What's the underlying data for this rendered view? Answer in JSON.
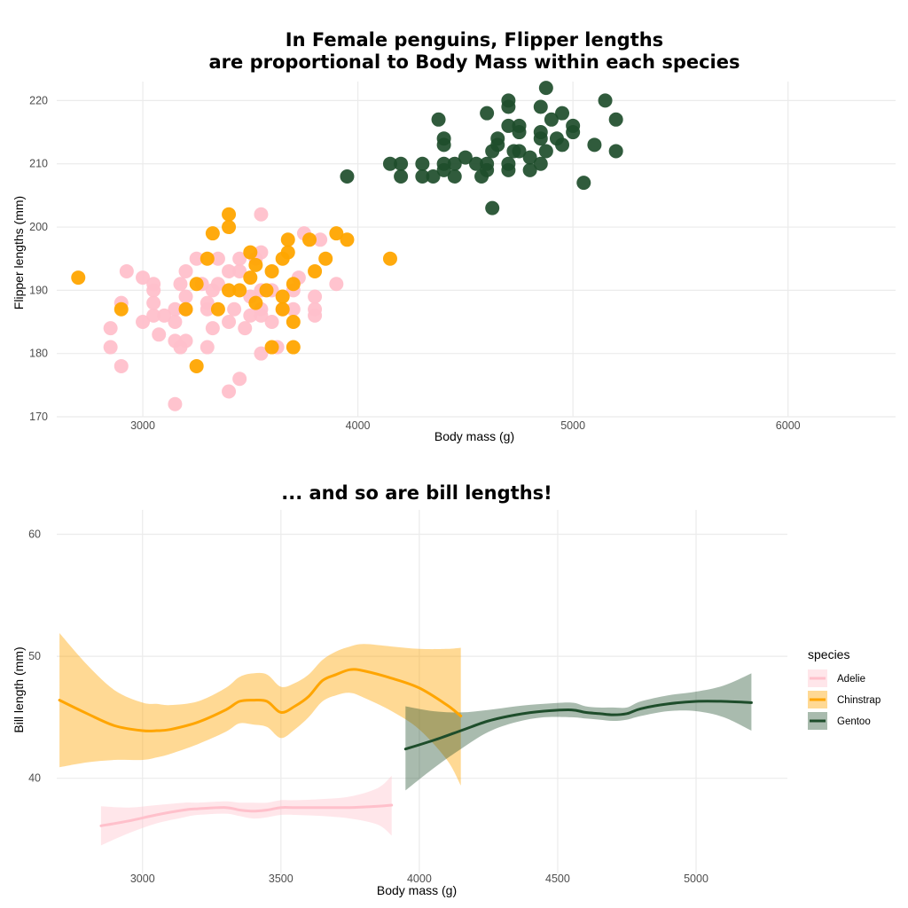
{
  "colors": {
    "Adelie": "#FFC0CB",
    "Chinstrap": "#FFA500",
    "Gentoo": "#1E4D2B"
  },
  "chart_data": [
    {
      "type": "scatter",
      "title": "In Female penguins, Flipper lengths are proportional to Body Mass within each species",
      "title_lines": [
        "In Female penguins, Flipper lengths",
        "are proportional to Body Mass within each species"
      ],
      "xlabel": "Body mass (g)",
      "ylabel": "Flipper lengths (mm)",
      "xlim": [
        2600,
        6500
      ],
      "ylim": [
        170,
        223
      ],
      "x_ticks": [
        3000,
        4000,
        5000,
        6000
      ],
      "y_ticks": [
        170,
        180,
        190,
        200,
        210,
        220
      ],
      "grid": true,
      "series": [
        {
          "name": "Adelie",
          "points": [
            [
              2850,
              181
            ],
            [
              2850,
              184
            ],
            [
              2900,
              178
            ],
            [
              2900,
              188
            ],
            [
              2925,
              193
            ],
            [
              3000,
              185
            ],
            [
              3000,
              192
            ],
            [
              3050,
              186
            ],
            [
              3050,
              188
            ],
            [
              3050,
              190
            ],
            [
              3050,
              191
            ],
            [
              3075,
              183
            ],
            [
              3100,
              186
            ],
            [
              3150,
              172
            ],
            [
              3150,
              182
            ],
            [
              3150,
              185
            ],
            [
              3150,
              187
            ],
            [
              3175,
              181
            ],
            [
              3175,
              191
            ],
            [
              3200,
              182
            ],
            [
              3200,
              187
            ],
            [
              3200,
              189
            ],
            [
              3200,
              193
            ],
            [
              3250,
              195
            ],
            [
              3275,
              191
            ],
            [
              3300,
              181
            ],
            [
              3300,
              187
            ],
            [
              3300,
              188
            ],
            [
              3325,
              184
            ],
            [
              3325,
              190
            ],
            [
              3350,
              191
            ],
            [
              3350,
              195
            ],
            [
              3400,
              174
            ],
            [
              3400,
              185
            ],
            [
              3400,
              193
            ],
            [
              3425,
              187
            ],
            [
              3450,
              176
            ],
            [
              3450,
              193
            ],
            [
              3450,
              195
            ],
            [
              3475,
              184
            ],
            [
              3500,
              186
            ],
            [
              3500,
              189
            ],
            [
              3525,
              195
            ],
            [
              3550,
              180
            ],
            [
              3550,
              186
            ],
            [
              3550,
              187
            ],
            [
              3550,
              190
            ],
            [
              3550,
              196
            ],
            [
              3550,
              202
            ],
            [
              3600,
              185
            ],
            [
              3600,
              190
            ],
            [
              3625,
              181
            ],
            [
              3650,
              187
            ],
            [
              3700,
              187
            ],
            [
              3700,
              190
            ],
            [
              3725,
              192
            ],
            [
              3750,
              199
            ],
            [
              3800,
              186
            ],
            [
              3800,
              187
            ],
            [
              3800,
              189
            ],
            [
              3825,
              198
            ],
            [
              3900,
              191
            ]
          ]
        },
        {
          "name": "Chinstrap",
          "points": [
            [
              2700,
              192
            ],
            [
              2900,
              187
            ],
            [
              3200,
              187
            ],
            [
              3250,
              178
            ],
            [
              3250,
              191
            ],
            [
              3300,
              195
            ],
            [
              3325,
              199
            ],
            [
              3350,
              187
            ],
            [
              3400,
              190
            ],
            [
              3400,
              200
            ],
            [
              3400,
              202
            ],
            [
              3450,
              190
            ],
            [
              3500,
              192
            ],
            [
              3500,
              196
            ],
            [
              3525,
              188
            ],
            [
              3525,
              194
            ],
            [
              3575,
              190
            ],
            [
              3600,
              181
            ],
            [
              3600,
              193
            ],
            [
              3650,
              187
            ],
            [
              3650,
              189
            ],
            [
              3650,
              195
            ],
            [
              3675,
              196
            ],
            [
              3675,
              198
            ],
            [
              3700,
              181
            ],
            [
              3700,
              185
            ],
            [
              3700,
              191
            ],
            [
              3775,
              198
            ],
            [
              3800,
              193
            ],
            [
              3850,
              195
            ],
            [
              3900,
              199
            ],
            [
              3950,
              198
            ],
            [
              4150,
              195
            ]
          ]
        },
        {
          "name": "Gentoo",
          "points": [
            [
              3950,
              208
            ],
            [
              4150,
              210
            ],
            [
              4200,
              208
            ],
            [
              4200,
              210
            ],
            [
              4300,
              208
            ],
            [
              4300,
              210
            ],
            [
              4350,
              208
            ],
            [
              4375,
              217
            ],
            [
              4400,
              209
            ],
            [
              4400,
              210
            ],
            [
              4400,
              213
            ],
            [
              4400,
              214
            ],
            [
              4450,
              208
            ],
            [
              4450,
              210
            ],
            [
              4500,
              211
            ],
            [
              4550,
              210
            ],
            [
              4575,
              208
            ],
            [
              4600,
              209
            ],
            [
              4600,
              210
            ],
            [
              4600,
              218
            ],
            [
              4625,
              203
            ],
            [
              4625,
              212
            ],
            [
              4650,
              213
            ],
            [
              4650,
              214
            ],
            [
              4700,
              209
            ],
            [
              4700,
              210
            ],
            [
              4700,
              216
            ],
            [
              4700,
              219
            ],
            [
              4700,
              220
            ],
            [
              4725,
              212
            ],
            [
              4750,
              212
            ],
            [
              4750,
              215
            ],
            [
              4750,
              216
            ],
            [
              4800,
              209
            ],
            [
              4800,
              211
            ],
            [
              4850,
              210
            ],
            [
              4850,
              214
            ],
            [
              4850,
              215
            ],
            [
              4850,
              219
            ],
            [
              4875,
              212
            ],
            [
              4875,
              222
            ],
            [
              4900,
              217
            ],
            [
              4925,
              214
            ],
            [
              4950,
              213
            ],
            [
              4950,
              218
            ],
            [
              5000,
              215
            ],
            [
              5000,
              216
            ],
            [
              5050,
              207
            ],
            [
              5100,
              213
            ],
            [
              5150,
              220
            ],
            [
              5200,
              212
            ],
            [
              5200,
              217
            ]
          ]
        }
      ]
    },
    {
      "type": "line",
      "title": "... and so are bill lengths!",
      "xlabel": "Body mass (g)",
      "ylabel": "Bill length (mm)",
      "xlim": [
        2690,
        5330
      ],
      "ylim": [
        32.2,
        62
      ],
      "x_ticks": [
        3000,
        3500,
        4000,
        4500,
        5000
      ],
      "y_ticks": [
        40,
        50,
        60
      ],
      "grid": true,
      "legend": {
        "title": "species",
        "position": "right",
        "items": [
          "Adelie",
          "Chinstrap",
          "Gentoo"
        ]
      },
      "series": [
        {
          "name": "Adelie",
          "x": [
            2850,
            2950,
            3050,
            3150,
            3200,
            3300,
            3350,
            3400,
            3450,
            3500,
            3550,
            3650,
            3750,
            3850,
            3900
          ],
          "y": [
            36.1,
            36.5,
            37.0,
            37.4,
            37.5,
            37.6,
            37.4,
            37.3,
            37.4,
            37.6,
            37.6,
            37.6,
            37.6,
            37.7,
            37.8
          ],
          "lower": [
            34.5,
            35.5,
            36.3,
            36.8,
            37.0,
            37.1,
            36.9,
            36.7,
            36.8,
            37.0,
            37.0,
            36.9,
            36.7,
            36.2,
            35.3
          ],
          "upper": [
            37.7,
            37.6,
            37.8,
            38.0,
            38.0,
            38.1,
            38.0,
            38.0,
            38.0,
            38.2,
            38.2,
            38.3,
            38.5,
            39.2,
            40.2
          ]
        },
        {
          "name": "Chinstrap",
          "x": [
            2700,
            2800,
            2900,
            3000,
            3050,
            3100,
            3200,
            3300,
            3350,
            3400,
            3450,
            3500,
            3550,
            3600,
            3650,
            3700,
            3750,
            3800,
            3900,
            4000,
            4100,
            4150
          ],
          "y": [
            46.4,
            45.3,
            44.3,
            43.9,
            43.9,
            44.0,
            44.6,
            45.6,
            46.3,
            46.4,
            46.3,
            45.4,
            45.9,
            46.7,
            48.0,
            48.5,
            48.9,
            48.8,
            48.2,
            47.4,
            46.0,
            45.1
          ],
          "lower": [
            40.9,
            41.3,
            41.5,
            41.5,
            41.7,
            42.0,
            42.8,
            43.8,
            44.5,
            44.4,
            44.2,
            43.3,
            44.0,
            45.0,
            46.3,
            46.8,
            47.0,
            46.6,
            45.5,
            44.0,
            41.5,
            39.4
          ],
          "upper": [
            51.9,
            49.3,
            47.2,
            46.2,
            46.1,
            46.0,
            46.3,
            47.4,
            48.3,
            48.6,
            48.5,
            47.5,
            47.8,
            48.5,
            49.7,
            50.4,
            50.8,
            51.0,
            50.8,
            50.6,
            50.6,
            50.7
          ]
        },
        {
          "name": "Gentoo",
          "x": [
            3950,
            4050,
            4150,
            4250,
            4350,
            4450,
            4550,
            4600,
            4650,
            4700,
            4750,
            4800,
            4900,
            5000,
            5100,
            5200
          ],
          "y": [
            42.4,
            43.1,
            43.9,
            44.7,
            45.2,
            45.5,
            45.6,
            45.4,
            45.3,
            45.2,
            45.3,
            45.7,
            46.1,
            46.3,
            46.3,
            46.2
          ],
          "lower": [
            39.0,
            40.8,
            42.4,
            43.8,
            44.6,
            45.0,
            45.0,
            44.9,
            44.8,
            44.7,
            44.8,
            45.1,
            45.5,
            45.5,
            45.0,
            43.9
          ],
          "upper": [
            45.9,
            45.5,
            45.4,
            45.6,
            45.9,
            46.1,
            46.2,
            45.9,
            45.8,
            45.8,
            45.8,
            46.3,
            46.8,
            47.1,
            47.6,
            48.6
          ]
        }
      ]
    }
  ]
}
